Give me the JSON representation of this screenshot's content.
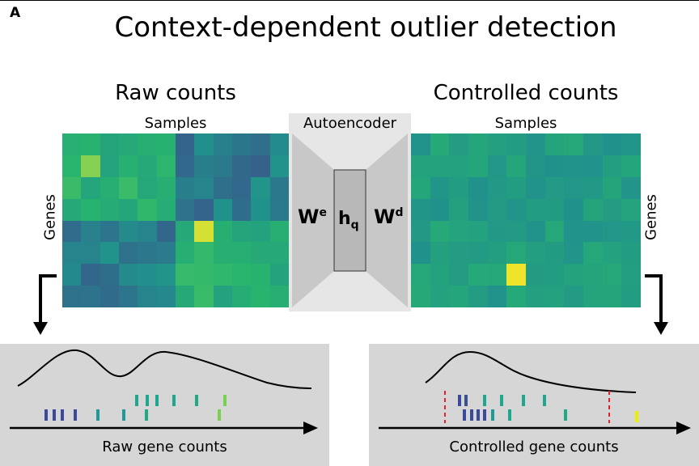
{
  "panel_letter": "A",
  "title": "Context-dependent outlier detection",
  "left_heatmap": {
    "title": "Raw counts",
    "x_label": "Samples",
    "y_label": "Genes"
  },
  "right_heatmap": {
    "title": "Controlled counts",
    "x_label": "Samples",
    "y_label": "Genes"
  },
  "autoencoder": {
    "label": "Autoencoder",
    "encoder_symbol": "W",
    "encoder_sup": "e",
    "latent_symbol": "h",
    "latent_sub": "q",
    "decoder_symbol": "W",
    "decoder_sup": "d"
  },
  "left_box": {
    "caption": "Raw gene counts"
  },
  "right_box": {
    "caption": "Controlled gene counts"
  },
  "colors": {
    "outlier_yellow": "#e8f000",
    "threshold_red": "#e8202a",
    "box_gray": "#d6d6d6",
    "autoencoder_gray": "#e6e6e6"
  }
}
